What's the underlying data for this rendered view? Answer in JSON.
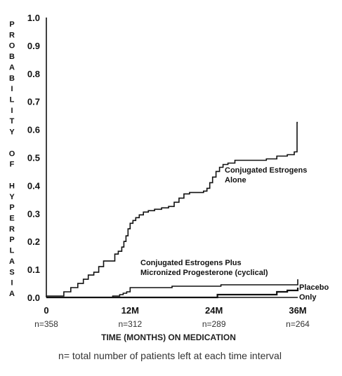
{
  "chart_data": {
    "type": "line",
    "ylabel": "PROBABILITY OF HYPERPLASIA",
    "xlabel": "TIME (MONTHS) ON MEDICATION",
    "footnote": "n= total number of patients left at each time interval",
    "x_ticks": [
      {
        "label": "0",
        "n": "n=358",
        "value": 0
      },
      {
        "label": "12M",
        "n": "n=312",
        "value": 12
      },
      {
        "label": "24M",
        "n": "n=289",
        "value": 24
      },
      {
        "label": "36M",
        "n": "n=264",
        "value": 36
      }
    ],
    "y_ticks": [
      "0.0",
      "0.1",
      "0.2",
      "0.3",
      "0.4",
      "0.5",
      "0.6",
      "0.7",
      "0.8",
      "0.9",
      "1.0"
    ],
    "xlim": [
      0,
      36
    ],
    "ylim": [
      0,
      1.0
    ],
    "grid": false,
    "series": [
      {
        "name": "Conjugated Estrogens Alone",
        "label_lines": [
          "Conjugated Estrogens",
          "Alone"
        ],
        "x": [
          0,
          2.5,
          3.5,
          4.5,
          5.3,
          6.0,
          6.8,
          7.5,
          8.2,
          9.0,
          9.8,
          10.3,
          10.8,
          11.1,
          11.4,
          11.7,
          12.0,
          12.4,
          12.8,
          13.3,
          13.9,
          14.6,
          15.5,
          16.5,
          17.5,
          18.3,
          19.0,
          19.7,
          20.5,
          21.5,
          22.5,
          23.0,
          23.4,
          23.8,
          24.3,
          24.8,
          25.3,
          26.0,
          27.0,
          28.5,
          30.0,
          31.5,
          33.0,
          34.5,
          35.5,
          35.9
        ],
        "y": [
          0.005,
          0.02,
          0.035,
          0.05,
          0.065,
          0.08,
          0.09,
          0.11,
          0.13,
          0.13,
          0.155,
          0.165,
          0.18,
          0.2,
          0.22,
          0.245,
          0.265,
          0.275,
          0.285,
          0.295,
          0.305,
          0.31,
          0.315,
          0.32,
          0.325,
          0.34,
          0.355,
          0.37,
          0.375,
          0.375,
          0.38,
          0.39,
          0.41,
          0.43,
          0.45,
          0.465,
          0.475,
          0.48,
          0.49,
          0.49,
          0.49,
          0.495,
          0.505,
          0.51,
          0.52,
          0.625
        ]
      },
      {
        "name": "Conjugated Estrogens Plus Micronized Progesterone (cyclical)",
        "label_lines": [
          "Conjugated Estrogens Plus",
          "Micronized Progesterone (cyclical)"
        ],
        "x": [
          0,
          9.5,
          10.5,
          11.0,
          11.5,
          12.0,
          13.0,
          18.0,
          25.0,
          34.0,
          36.0
        ],
        "y": [
          0.0,
          0.005,
          0.01,
          0.015,
          0.02,
          0.035,
          0.035,
          0.04,
          0.045,
          0.045,
          0.065
        ]
      },
      {
        "name": "Placebo Only",
        "label_lines": [
          "Placebo",
          "Only"
        ],
        "x": [
          0,
          24.5,
          33.0,
          34.5,
          36.0
        ],
        "y": [
          0.0,
          0.01,
          0.02,
          0.025,
          0.035
        ]
      }
    ]
  }
}
